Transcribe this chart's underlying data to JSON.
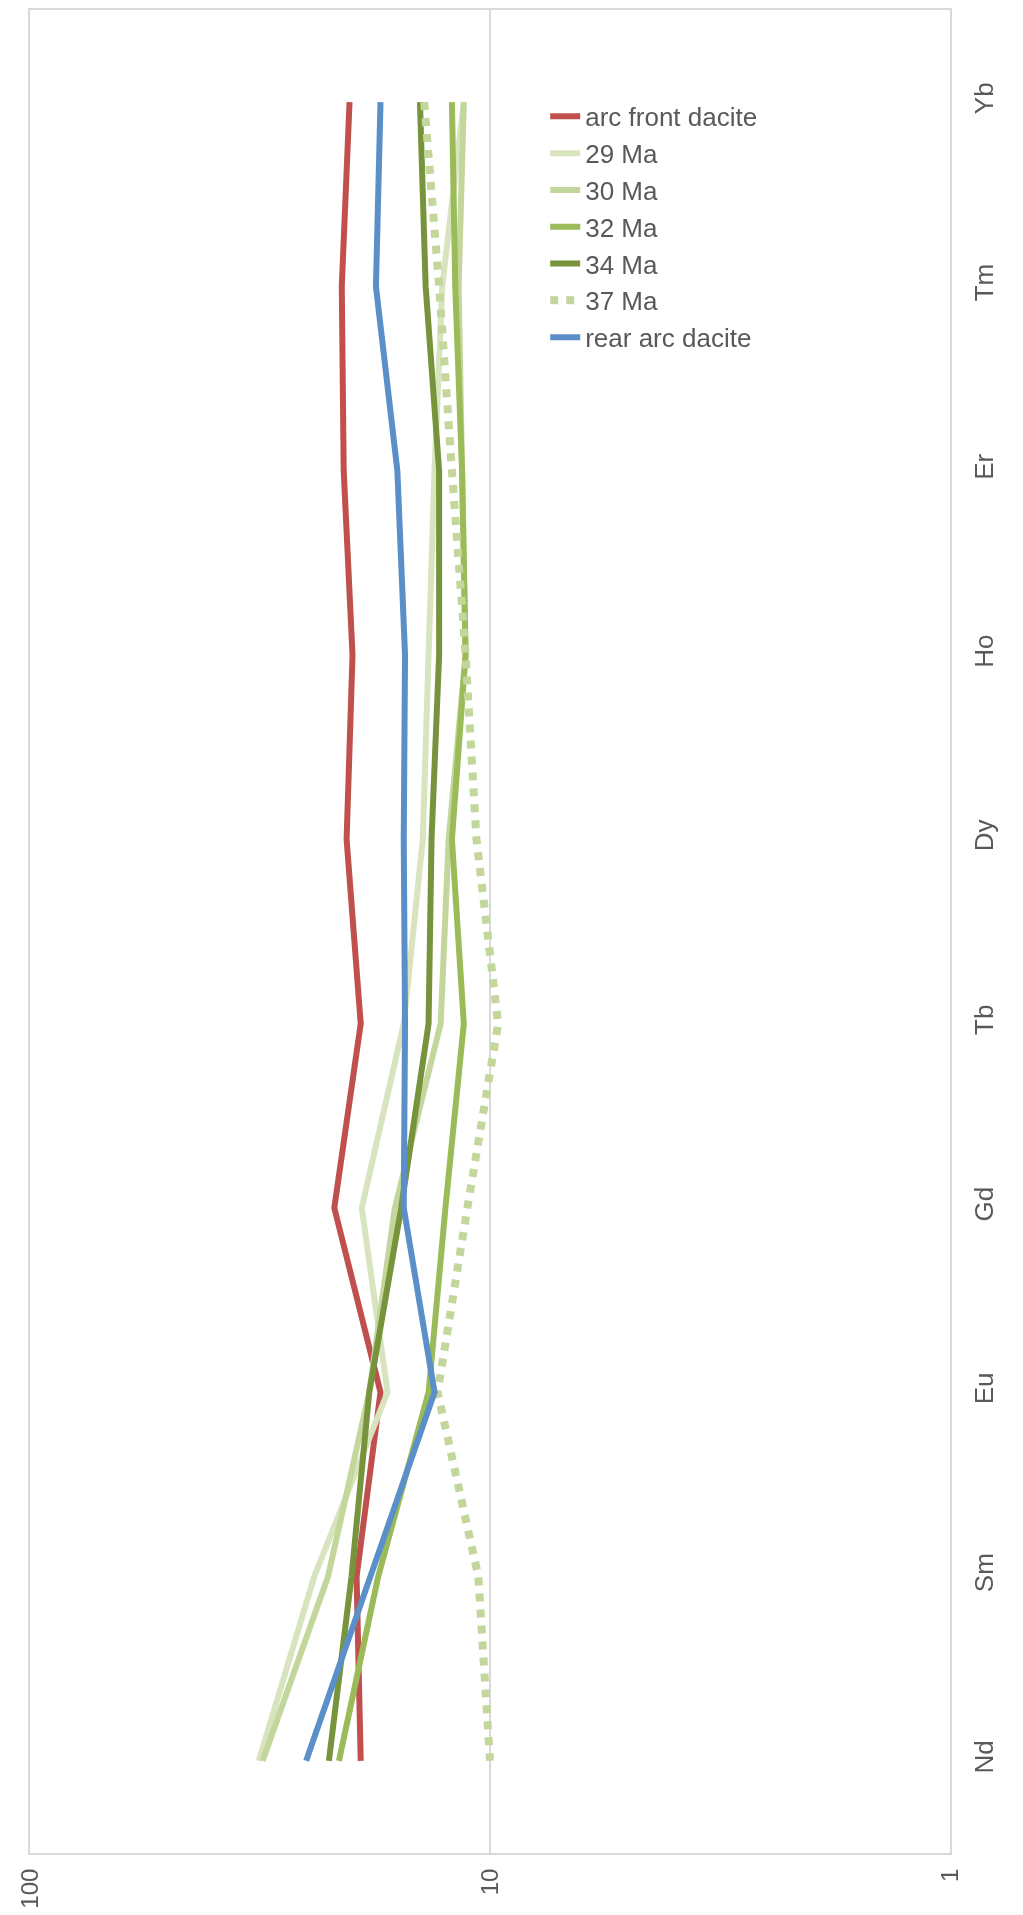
{
  "chart_data": {
    "type": "line",
    "orientation": "horizontal",
    "categories": [
      "Yb",
      "Tm",
      "Er",
      "Ho",
      "Dy",
      "Tb",
      "Gd",
      "Eu",
      "Sm",
      "Nd"
    ],
    "series": [
      {
        "name": "arc front dacite",
        "color": "#c0504d",
        "values": [
          20.2,
          21,
          20.8,
          19.9,
          20.5,
          19.1,
          21.8,
          17.3,
          19.5,
          19.1
        ]
      },
      {
        "name": "29 Ma",
        "color": "#d7e4bd",
        "values": [
          11.4,
          12.7,
          13.2,
          13.6,
          14,
          15.4,
          19,
          16.7,
          24.1,
          31.8
        ]
      },
      {
        "name": "30 Ma",
        "color": "#c3d69b",
        "values": [
          11.4,
          11.7,
          11.5,
          11.3,
          12.3,
          12.8,
          16.1,
          18.3,
          22.5,
          31.2
        ]
      },
      {
        "name": "32 Ma",
        "color": "#9bbb59",
        "values": [
          12.1,
          11.9,
          11.5,
          11.3,
          12.1,
          11.4,
          12.5,
          13.6,
          17.5,
          21.3
        ]
      },
      {
        "name": "34 Ma",
        "color": "#77933c",
        "values": [
          14.2,
          13.8,
          12.9,
          12.9,
          13.4,
          13.6,
          15.6,
          18.3,
          20,
          22.4
        ]
      },
      {
        "name": "37 Ma",
        "color": "#c3d69b",
        "line_style": "dotted",
        "values": [
          13.9,
          12.9,
          12.1,
          11.3,
          10.7,
          9.6,
          11.2,
          13,
          10.6,
          10
        ]
      },
      {
        "name": "rear arc dacite",
        "color": "#5b8fc9",
        "values": [
          17.3,
          17.7,
          15.9,
          15.3,
          15.4,
          15.3,
          15.4,
          13.2,
          18.2,
          25.1
        ]
      }
    ],
    "log": "x",
    "xlim": [
      100,
      1
    ],
    "xticks": [
      1,
      10,
      100
    ],
    "grid": "x",
    "legend": "right",
    "marker": "none",
    "line_style": "solid"
  }
}
